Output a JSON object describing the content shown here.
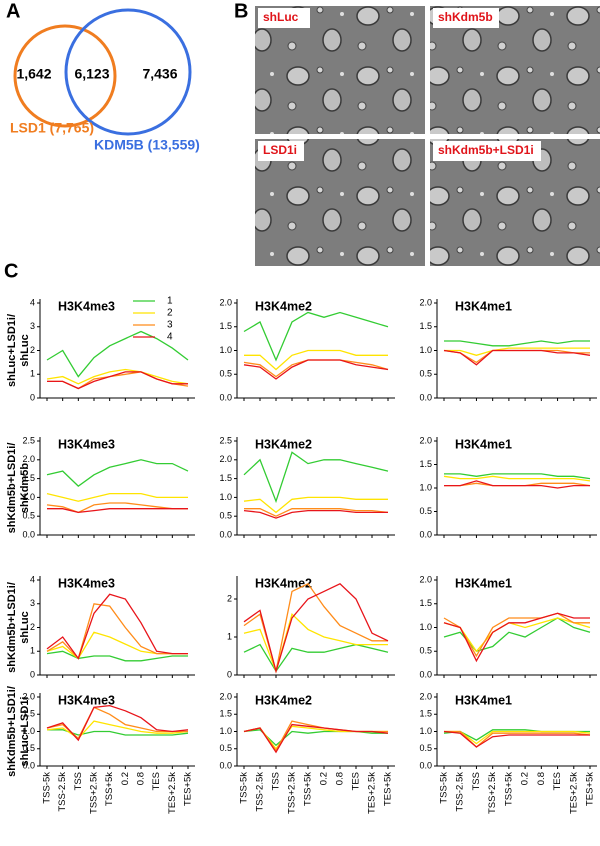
{
  "panels": {
    "a": "A",
    "b": "B",
    "c": "C"
  },
  "venn": {
    "left_only": "1,642",
    "overlap": "6,123",
    "right_only": "7,436",
    "left_label": "LSD1 (7,765)",
    "right_label": "KDM5B (13,559)"
  },
  "images": [
    "shLuc",
    "shKdm5b",
    "LSD1i",
    "shKdm5b+LSD1i"
  ],
  "row_labels": [
    [
      "shLuc+LSD1i/",
      "shLuc"
    ],
    [
      "shKdm5b+LSD1i/",
      "shKdm5b"
    ],
    [
      "shKdm5b+LSD1i/",
      "shLuc"
    ],
    [
      "shKdm5b+LSD1i/",
      "shLuc+LSD1i"
    ]
  ],
  "chart_data": [
    {
      "type": "line",
      "title": "H3K4me3",
      "ylim": [
        0,
        4
      ],
      "yticks": [
        0,
        1,
        2,
        3,
        4
      ],
      "legend": "top-right",
      "categories": [
        null,
        null,
        null,
        null,
        null,
        null,
        null,
        null,
        null,
        null
      ],
      "series": [
        {
          "name": "1",
          "color": "#33cc33",
          "values": [
            1.6,
            2.0,
            0.9,
            1.7,
            2.2,
            2.5,
            2.8,
            2.5,
            2.1,
            1.6
          ]
        },
        {
          "name": "2",
          "color": "#ffe400",
          "values": [
            0.8,
            0.9,
            0.6,
            0.9,
            1.1,
            1.2,
            1.1,
            0.9,
            0.7,
            0.6
          ]
        },
        {
          "name": "3",
          "color": "#ff8c1a",
          "values": [
            0.7,
            0.7,
            0.4,
            0.8,
            0.9,
            1.0,
            1.1,
            0.8,
            0.6,
            0.5
          ]
        },
        {
          "name": "4",
          "color": "#e8141a",
          "values": [
            0.7,
            0.7,
            0.4,
            0.7,
            0.9,
            1.1,
            1.1,
            0.8,
            0.6,
            0.6
          ]
        }
      ]
    },
    {
      "type": "line",
      "title": "H3K4me2",
      "ylim": [
        0,
        2
      ],
      "yticks": [
        {
          "value": 0,
          "label": "0.0"
        },
        0.5,
        {
          "value": 1,
          "label": "1.0"
        },
        1.5,
        {
          "value": 2,
          "label": "2.0"
        }
      ],
      "categories": [
        null,
        null,
        null,
        null,
        null,
        null,
        null,
        null,
        null,
        null
      ],
      "series": [
        {
          "color": "#33cc33",
          "values": [
            1.4,
            1.6,
            0.8,
            1.6,
            1.8,
            1.7,
            1.8,
            1.7,
            1.6,
            1.5
          ]
        },
        {
          "color": "#ffe400",
          "values": [
            0.9,
            0.9,
            0.6,
            0.9,
            1.0,
            1.0,
            1.0,
            0.9,
            0.9,
            0.9
          ]
        },
        {
          "color": "#ff8c1a",
          "values": [
            0.75,
            0.7,
            0.45,
            0.7,
            0.8,
            0.8,
            0.8,
            0.75,
            0.7,
            0.6
          ]
        },
        {
          "color": "#e8141a",
          "values": [
            0.7,
            0.65,
            0.4,
            0.65,
            0.8,
            0.8,
            0.8,
            0.7,
            0.65,
            0.6
          ]
        }
      ]
    },
    {
      "type": "line",
      "title": "H3K4me1",
      "ylim": [
        0,
        2
      ],
      "yticks": [
        {
          "value": 0,
          "label": "0.0"
        },
        0.5,
        {
          "value": 1,
          "label": "1.0"
        },
        1.5,
        {
          "value": 2,
          "label": "2.0"
        }
      ],
      "categories": [
        null,
        null,
        null,
        null,
        null,
        null,
        null,
        null,
        null,
        null
      ],
      "series": [
        {
          "color": "#33cc33",
          "values": [
            1.2,
            1.2,
            1.15,
            1.1,
            1.1,
            1.15,
            1.2,
            1.15,
            1.2,
            1.2
          ]
        },
        {
          "color": "#ffe400",
          "values": [
            1.0,
            1.0,
            0.9,
            1.0,
            1.05,
            1.05,
            1.05,
            1.05,
            1.05,
            1.05
          ]
        },
        {
          "color": "#ff8c1a",
          "values": [
            1.0,
            0.95,
            0.75,
            1.0,
            1.0,
            1.0,
            1.0,
            1.0,
            0.95,
            0.95
          ]
        },
        {
          "color": "#e8141a",
          "values": [
            1.0,
            0.95,
            0.7,
            1.0,
            1.0,
            1.0,
            1.0,
            0.95,
            0.95,
            0.9
          ]
        }
      ]
    },
    {
      "type": "line",
      "title": "H3K4me3",
      "ylim": [
        0,
        2.5
      ],
      "yticks": [
        {
          "value": 0,
          "label": "0.0"
        },
        0.5,
        {
          "value": 1,
          "label": "1.0"
        },
        1.5,
        {
          "value": 2,
          "label": "2.0"
        },
        2.5
      ],
      "categories": [
        null,
        null,
        null,
        null,
        null,
        null,
        null,
        null,
        null,
        null
      ],
      "series": [
        {
          "color": "#33cc33",
          "values": [
            1.6,
            1.7,
            1.3,
            1.6,
            1.8,
            1.9,
            2.0,
            1.9,
            1.9,
            1.7
          ]
        },
        {
          "color": "#ffe400",
          "values": [
            1.1,
            1.0,
            0.9,
            1.0,
            1.1,
            1.1,
            1.1,
            1.0,
            1.0,
            1.0
          ]
        },
        {
          "color": "#ff8c1a",
          "values": [
            0.8,
            0.75,
            0.6,
            0.8,
            0.85,
            0.85,
            0.8,
            0.75,
            0.7,
            0.7
          ]
        },
        {
          "color": "#e8141a",
          "values": [
            0.7,
            0.7,
            0.6,
            0.65,
            0.7,
            0.7,
            0.7,
            0.7,
            0.7,
            0.7
          ]
        }
      ]
    },
    {
      "type": "line",
      "title": "H3K4me2",
      "ylim": [
        0,
        2.5
      ],
      "yticks": [
        {
          "value": 0,
          "label": "0.0"
        },
        0.5,
        {
          "value": 1,
          "label": "1.0"
        },
        1.5,
        {
          "value": 2,
          "label": "2.0"
        },
        2.5
      ],
      "categories": [
        null,
        null,
        null,
        null,
        null,
        null,
        null,
        null,
        null,
        null
      ],
      "series": [
        {
          "color": "#33cc33",
          "values": [
            1.6,
            2.0,
            0.9,
            2.2,
            1.9,
            2.0,
            2.0,
            1.9,
            1.8,
            1.7
          ]
        },
        {
          "color": "#ffe400",
          "values": [
            0.9,
            0.95,
            0.6,
            0.95,
            1.0,
            1.0,
            1.0,
            0.95,
            0.95,
            0.95
          ]
        },
        {
          "color": "#ff8c1a",
          "values": [
            0.7,
            0.7,
            0.5,
            0.7,
            0.7,
            0.7,
            0.7,
            0.65,
            0.65,
            0.6
          ]
        },
        {
          "color": "#e8141a",
          "values": [
            0.65,
            0.6,
            0.45,
            0.6,
            0.65,
            0.65,
            0.65,
            0.6,
            0.6,
            0.6
          ]
        }
      ]
    },
    {
      "type": "line",
      "title": "H3K4me1",
      "ylim": [
        0,
        2
      ],
      "yticks": [
        {
          "value": 0,
          "label": "0.0"
        },
        0.5,
        {
          "value": 1,
          "label": "1.0"
        },
        1.5,
        {
          "value": 2,
          "label": "2.0"
        }
      ],
      "categories": [
        null,
        null,
        null,
        null,
        null,
        null,
        null,
        null,
        null,
        null
      ],
      "series": [
        {
          "color": "#33cc33",
          "values": [
            1.3,
            1.3,
            1.25,
            1.3,
            1.3,
            1.3,
            1.3,
            1.25,
            1.25,
            1.2
          ]
        },
        {
          "color": "#ffe400",
          "values": [
            1.25,
            1.2,
            1.2,
            1.25,
            1.2,
            1.2,
            1.2,
            1.2,
            1.2,
            1.15
          ]
        },
        {
          "color": "#ff8c1a",
          "values": [
            1.05,
            1.05,
            1.1,
            1.05,
            1.05,
            1.05,
            1.1,
            1.1,
            1.1,
            1.05
          ]
        },
        {
          "color": "#e8141a",
          "values": [
            1.05,
            1.05,
            1.15,
            1.05,
            1.05,
            1.05,
            1.05,
            1.0,
            1.05,
            1.05
          ]
        }
      ]
    },
    {
      "type": "line",
      "title": "H3K4me3",
      "ylim": [
        0,
        4
      ],
      "yticks": [
        0,
        1,
        2,
        3,
        4
      ],
      "categories": [
        null,
        null,
        null,
        null,
        null,
        null,
        null,
        null,
        null,
        null
      ],
      "series": [
        {
          "color": "#33cc33",
          "values": [
            0.9,
            1.0,
            0.7,
            0.8,
            0.8,
            0.6,
            0.6,
            0.7,
            0.8,
            0.8
          ]
        },
        {
          "color": "#ffe400",
          "values": [
            1.0,
            1.2,
            0.7,
            1.8,
            1.6,
            1.3,
            1.0,
            0.9,
            0.9,
            0.9
          ]
        },
        {
          "color": "#ff8c1a",
          "values": [
            1.0,
            1.4,
            0.7,
            3.0,
            2.9,
            2.0,
            1.2,
            0.9,
            0.9,
            0.9
          ]
        },
        {
          "color": "#e8141a",
          "values": [
            1.1,
            1.6,
            0.7,
            2.6,
            3.4,
            3.2,
            2.2,
            1.0,
            0.9,
            0.9
          ]
        }
      ]
    },
    {
      "type": "line",
      "title": "H3K4me2",
      "ylim": [
        0,
        2.5
      ],
      "yticks": [
        0,
        1,
        2
      ],
      "categories": [
        null,
        null,
        null,
        null,
        null,
        null,
        null,
        null,
        null,
        null
      ],
      "series": [
        {
          "color": "#33cc33",
          "values": [
            0.6,
            0.8,
            0.1,
            0.7,
            0.6,
            0.6,
            0.7,
            0.8,
            0.7,
            0.6
          ]
        },
        {
          "color": "#ffe400",
          "values": [
            1.1,
            1.2,
            0.1,
            1.6,
            1.2,
            1.0,
            0.9,
            0.8,
            0.8,
            0.8
          ]
        },
        {
          "color": "#ff8c1a",
          "values": [
            1.3,
            1.6,
            0.1,
            2.2,
            2.4,
            1.8,
            1.3,
            1.1,
            0.9,
            0.9
          ]
        },
        {
          "color": "#e8141a",
          "values": [
            1.4,
            1.7,
            0.1,
            1.5,
            2.0,
            2.2,
            2.4,
            2.0,
            1.1,
            0.9
          ]
        }
      ]
    },
    {
      "type": "line",
      "title": "H3K4me1",
      "ylim": [
        0,
        2
      ],
      "yticks": [
        {
          "value": 0,
          "label": "0.0"
        },
        0.5,
        {
          "value": 1,
          "label": "1.0"
        },
        1.5,
        {
          "value": 2,
          "label": "2.0"
        }
      ],
      "categories": [
        null,
        null,
        null,
        null,
        null,
        null,
        null,
        null,
        null,
        null
      ],
      "series": [
        {
          "color": "#33cc33",
          "values": [
            0.8,
            0.9,
            0.5,
            0.6,
            0.9,
            0.8,
            1.0,
            1.2,
            1.0,
            0.9
          ]
        },
        {
          "color": "#ffe400",
          "values": [
            1.1,
            1.0,
            0.5,
            0.9,
            1.1,
            1.0,
            1.1,
            1.2,
            1.1,
            1.0
          ]
        },
        {
          "color": "#ff8c1a",
          "values": [
            1.2,
            1.0,
            0.4,
            1.0,
            1.2,
            1.2,
            1.2,
            1.3,
            1.1,
            1.1
          ]
        },
        {
          "color": "#e8141a",
          "values": [
            1.1,
            1.0,
            0.3,
            0.9,
            1.1,
            1.1,
            1.2,
            1.3,
            1.2,
            1.2
          ]
        }
      ]
    },
    {
      "type": "line",
      "title": "H3K4me3",
      "ylim": [
        0,
        2
      ],
      "yticks": [
        {
          "value": 0,
          "label": "0.0"
        },
        0.5,
        {
          "value": 1,
          "label": "1.0"
        },
        1.5,
        {
          "value": 2,
          "label": "2.0"
        }
      ],
      "categories": [
        "TSS-5k",
        "TSS-2.5k",
        "TSS",
        "TSS+2.5k",
        "TSS+5k",
        "0.2",
        "0.8",
        "TES",
        "TES+2.5k",
        "TES+5k"
      ],
      "series": [
        {
          "color": "#33cc33",
          "values": [
            1.05,
            1.05,
            0.9,
            1.0,
            1.0,
            0.9,
            0.9,
            0.9,
            0.9,
            0.95
          ]
        },
        {
          "color": "#ffe400",
          "values": [
            1.05,
            1.1,
            0.8,
            1.3,
            1.2,
            1.1,
            1.0,
            0.95,
            0.95,
            1.0
          ]
        },
        {
          "color": "#ff8c1a",
          "values": [
            1.1,
            1.2,
            0.8,
            1.7,
            1.5,
            1.2,
            1.1,
            1.0,
            1.0,
            1.0
          ]
        },
        {
          "color": "#e8141a",
          "values": [
            1.1,
            1.25,
            0.75,
            1.7,
            1.75,
            1.6,
            1.4,
            1.05,
            1.0,
            1.05
          ]
        }
      ]
    },
    {
      "type": "line",
      "title": "H3K4me2",
      "ylim": [
        0,
        2
      ],
      "yticks": [
        {
          "value": 0,
          "label": "0.0"
        },
        0.5,
        {
          "value": 1,
          "label": "1.0"
        },
        1.5,
        {
          "value": 2,
          "label": "2.0"
        }
      ],
      "categories": [
        "TSS-5k",
        "TSS-2.5k",
        "TSS",
        "TSS+2.5k",
        "TSS+5k",
        "0.2",
        "0.8",
        "TES",
        "TES+2.5k",
        "TES+5k"
      ],
      "series": [
        {
          "color": "#33cc33",
          "values": [
            1.0,
            1.05,
            0.6,
            1.0,
            0.95,
            1.0,
            1.0,
            1.0,
            0.95,
            0.95
          ]
        },
        {
          "color": "#ffe400",
          "values": [
            1.0,
            1.1,
            0.5,
            1.15,
            1.1,
            1.05,
            1.0,
            1.0,
            1.0,
            1.0
          ]
        },
        {
          "color": "#ff8c1a",
          "values": [
            1.0,
            1.1,
            0.45,
            1.3,
            1.2,
            1.1,
            1.05,
            1.0,
            1.0,
            1.0
          ]
        },
        {
          "color": "#e8141a",
          "values": [
            1.0,
            1.1,
            0.4,
            1.2,
            1.15,
            1.1,
            1.05,
            1.0,
            1.0,
            0.95
          ]
        }
      ]
    },
    {
      "type": "line",
      "title": "H3K4me1",
      "ylim": [
        0,
        2
      ],
      "yticks": [
        {
          "value": 0,
          "label": "0.0"
        },
        0.5,
        {
          "value": 1,
          "label": "1.0"
        },
        1.5,
        {
          "value": 2,
          "label": "2.0"
        }
      ],
      "categories": [
        "TSS-5k",
        "TSS-2.5k",
        "TSS",
        "TSS+2.5k",
        "TSS+5k",
        "0.2",
        "0.8",
        "TES",
        "TES+2.5k",
        "TES+5k"
      ],
      "series": [
        {
          "color": "#33cc33",
          "values": [
            0.95,
            1.0,
            0.75,
            1.05,
            1.05,
            1.05,
            1.0,
            1.0,
            1.0,
            1.0
          ]
        },
        {
          "color": "#ffe400",
          "values": [
            1.0,
            1.0,
            0.65,
            1.0,
            1.0,
            1.0,
            1.0,
            1.0,
            1.0,
            0.95
          ]
        },
        {
          "color": "#ff8c1a",
          "values": [
            1.0,
            1.0,
            0.55,
            0.95,
            0.95,
            0.95,
            0.95,
            0.95,
            0.95,
            0.9
          ]
        },
        {
          "color": "#e8141a",
          "values": [
            1.0,
            0.95,
            0.55,
            0.85,
            0.9,
            0.9,
            0.9,
            0.9,
            0.9,
            0.9
          ]
        }
      ]
    }
  ]
}
